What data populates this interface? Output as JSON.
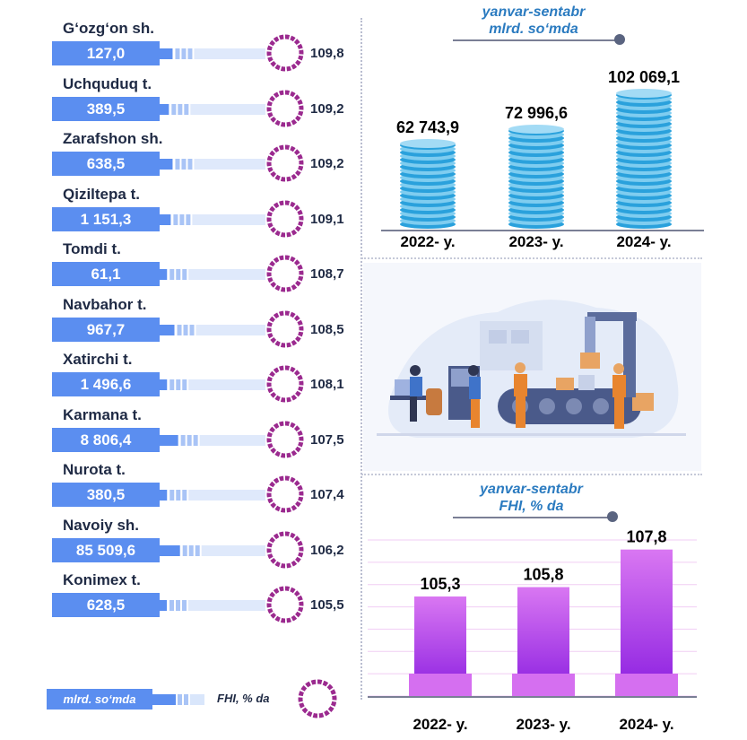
{
  "left": {
    "districts": [
      {
        "name": "G‘ozg‘on sh.",
        "value": "127,0",
        "fhi": "109,8",
        "seg": [
          0.35,
          0.12,
          0
        ]
      },
      {
        "name": "Uchquduq t.",
        "value": "389,5",
        "fhi": "109,2",
        "seg": [
          0.25,
          0.2,
          0.1
        ]
      },
      {
        "name": "Zarafshon sh.",
        "value": "638,5",
        "fhi": "109,2",
        "seg": [
          0.35,
          0.45,
          0.3
        ]
      },
      {
        "name": "Qiziltepa t.",
        "value": "1 151,3",
        "fhi": "109,1",
        "seg": [
          0.3,
          0.15,
          0
        ]
      },
      {
        "name": "Tomdi t.",
        "value": "61,1",
        "fhi": "108,7",
        "seg": [
          0.2,
          0.1,
          0
        ]
      },
      {
        "name": "Navbahor t.",
        "value": "967,7",
        "fhi": "108,5",
        "seg": [
          0.4,
          0.8,
          0.9
        ]
      },
      {
        "name": "Xatirchi t.",
        "value": "1 496,6",
        "fhi": "108,1",
        "seg": [
          0.2,
          0.1,
          0
        ]
      },
      {
        "name": "Karmana t.",
        "value": "8 806,4",
        "fhi": "107,5",
        "seg": [
          0.5,
          0.15,
          0
        ]
      },
      {
        "name": "Nurota t.",
        "value": "380,5",
        "fhi": "107,4",
        "seg": [
          0.2,
          0.3,
          0.1
        ]
      },
      {
        "name": "Navoiy sh.",
        "value": "85 509,6",
        "fhi": "106,2",
        "seg": [
          0.55,
          0.2,
          0
        ]
      },
      {
        "name": "Konimex t.",
        "value": "628,5",
        "fhi": "105,5",
        "seg": [
          0.1,
          0.4,
          0.2
        ]
      }
    ],
    "legend": {
      "value_label": "mlrd. so‘mda",
      "fhi_label": "FHI, % da"
    }
  },
  "colors": {
    "value_box": "#5b8ef0",
    "ring": "#9b2a8f",
    "bar_top": "#d977f2",
    "bar_bottom": "#8a1ee0",
    "accent_blue": "#1a7bb8",
    "accent_purple": "#a83aa0"
  },
  "chart_data": [
    {
      "type": "bar",
      "title": "yanvar-sentabr mlrd. so‘mda",
      "title_line1": "yanvar-sentabr",
      "title_line2": "mlrd. so‘mda",
      "categories": [
        "2022- y.",
        "2023- y.",
        "2024- y."
      ],
      "values": [
        62743.9,
        72996.6,
        102069.1
      ],
      "value_labels": [
        "62 743,9",
        "72 996,6",
        "102 069,1"
      ]
    },
    {
      "type": "bar",
      "title": "yanvar-sentabr FHI, % da",
      "title_line1": "yanvar-sentabr",
      "title_line2": "FHI, % da",
      "categories": [
        "2022- y.",
        "2023- y.",
        "2024- y."
      ],
      "values": [
        105.3,
        105.8,
        107.8
      ],
      "value_labels": [
        "105,3",
        "105,8",
        "107,8"
      ]
    }
  ]
}
